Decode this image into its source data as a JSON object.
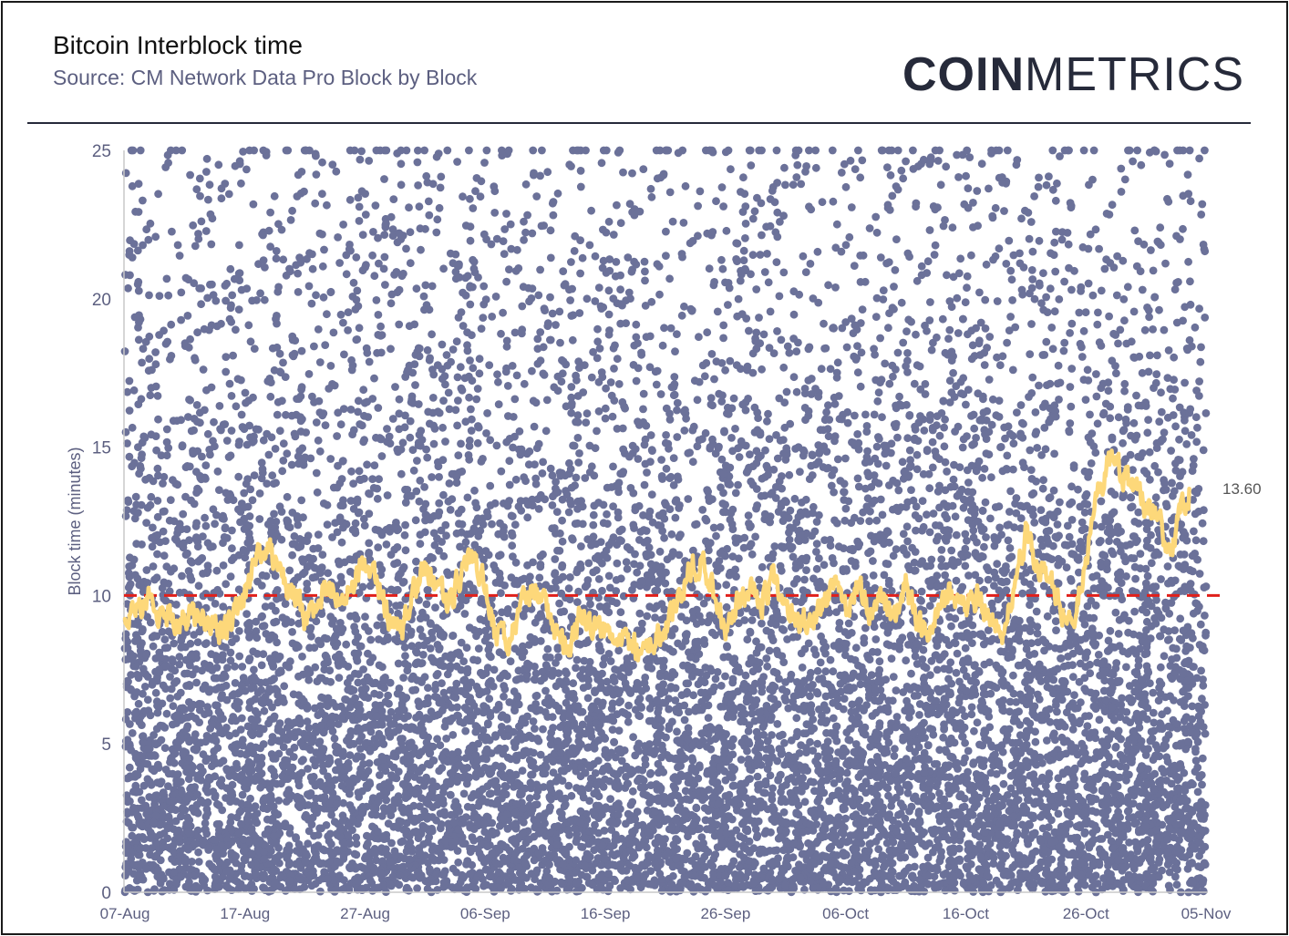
{
  "header": {
    "title": "Bitcoin Interblock time",
    "subtitle": "Source: CM Network Data Pro Block by Block",
    "logo_bold": "COIN",
    "logo_light": "METRICS"
  },
  "colors": {
    "dots": "#6b7199",
    "line": "#fdd87a",
    "reference": "#e0201b",
    "axis": "#c9c9c9",
    "text": "#5c5f80"
  },
  "chart_data": {
    "type": "scatter",
    "title": "",
    "xlabel": "",
    "ylabel": "Block time (minutes)",
    "x_range": [
      "2021-08-07",
      "2021-11-05"
    ],
    "x_tick_labels": [
      "07-Aug",
      "17-Aug",
      "27-Aug",
      "06-Sep",
      "16-Sep",
      "26-Sep",
      "06-Oct",
      "16-Oct",
      "26-Oct",
      "05-Nov"
    ],
    "ylim": [
      0,
      25
    ],
    "y_ticks": [
      0,
      5,
      10,
      15,
      20,
      25
    ],
    "grid": false,
    "legend": "none",
    "reference_line": {
      "y": 10,
      "style": "dashed"
    },
    "series": [
      {
        "kind": "scatter",
        "description": "individual block interblock times, exponentially distributed with mean near 10 minutes, dense near 0 and sparse near 25 (clipped at 25)",
        "approx_count": 12700
      },
      {
        "kind": "line",
        "description": "rolling average of block time",
        "points": [
          [
            0,
            9.0
          ],
          [
            1,
            9.6
          ],
          [
            2,
            10.1
          ],
          [
            3,
            9.4
          ],
          [
            4,
            9.2
          ],
          [
            5,
            9.3
          ],
          [
            6,
            9.5
          ],
          [
            7,
            9.0
          ],
          [
            8,
            8.9
          ],
          [
            9,
            9.1
          ],
          [
            10,
            10.0
          ],
          [
            11,
            11.2
          ],
          [
            12,
            11.6
          ],
          [
            13,
            10.7
          ],
          [
            14,
            10.1
          ],
          [
            15,
            9.3
          ],
          [
            16,
            9.6
          ],
          [
            17,
            10.3
          ],
          [
            18,
            9.7
          ],
          [
            19,
            10.4
          ],
          [
            20,
            11.3
          ],
          [
            21,
            10.6
          ],
          [
            22,
            9.3
          ],
          [
            23,
            8.6
          ],
          [
            24,
            10.1
          ],
          [
            25,
            10.9
          ],
          [
            26,
            10.4
          ],
          [
            27,
            9.6
          ],
          [
            28,
            10.7
          ],
          [
            29,
            11.3
          ],
          [
            30,
            10.3
          ],
          [
            31,
            8.5
          ],
          [
            32,
            8.6
          ],
          [
            33,
            9.6
          ],
          [
            34,
            10.3
          ],
          [
            35,
            9.4
          ],
          [
            36,
            8.7
          ],
          [
            37,
            8.3
          ],
          [
            38,
            9.5
          ],
          [
            39,
            9.1
          ],
          [
            40,
            8.8
          ],
          [
            41,
            8.6
          ],
          [
            42,
            8.4
          ],
          [
            43,
            8.2
          ],
          [
            44,
            8.5
          ],
          [
            45,
            9.0
          ],
          [
            46,
            9.6
          ],
          [
            47,
            10.9
          ],
          [
            48,
            11.2
          ],
          [
            49,
            10.2
          ],
          [
            50,
            9.0
          ],
          [
            51,
            9.7
          ],
          [
            52,
            10.2
          ],
          [
            53,
            9.7
          ],
          [
            54,
            10.6
          ],
          [
            55,
            9.8
          ],
          [
            56,
            9.1
          ],
          [
            57,
            9.3
          ],
          [
            58,
            9.6
          ],
          [
            59,
            10.2
          ],
          [
            60,
            9.3
          ],
          [
            61,
            10.3
          ],
          [
            62,
            9.5
          ],
          [
            63,
            9.9
          ],
          [
            64,
            9.3
          ],
          [
            65,
            10.4
          ],
          [
            66,
            9.2
          ],
          [
            67,
            8.9
          ],
          [
            68,
            9.9
          ],
          [
            69,
            10.0
          ],
          [
            70,
            9.6
          ],
          [
            71,
            10.0
          ],
          [
            72,
            9.2
          ],
          [
            73,
            8.7
          ],
          [
            74,
            10.4
          ],
          [
            75,
            12.0
          ],
          [
            76,
            10.9
          ],
          [
            77,
            10.7
          ],
          [
            78,
            9.6
          ],
          [
            79,
            9.4
          ],
          [
            80,
            11.2
          ],
          [
            81,
            13.3
          ],
          [
            82,
            14.6
          ],
          [
            83,
            14.2
          ],
          [
            84,
            13.5
          ],
          [
            85,
            13.1
          ],
          [
            86,
            12.7
          ],
          [
            87,
            11.4
          ],
          [
            88,
            13.0
          ],
          [
            88.6,
            13.6
          ]
        ]
      }
    ],
    "annotations": [
      {
        "text": "13.60",
        "y": 13.6
      }
    ]
  }
}
